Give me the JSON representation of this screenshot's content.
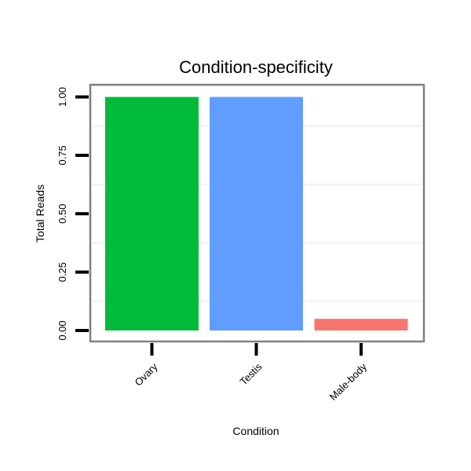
{
  "chart_data": {
    "type": "bar",
    "title": "Condition-specificity",
    "xlabel": "Condition",
    "ylabel": "Total Reads",
    "categories": [
      "Ovary",
      "Testis",
      "Male-body"
    ],
    "values": [
      1.0,
      1.0,
      0.05
    ],
    "colors": [
      "#00BA38",
      "#619CFF",
      "#F8766D"
    ],
    "ylim": [
      -0.05,
      1.05
    ],
    "yticks": [
      0,
      0.25,
      0.5,
      0.75,
      1.0
    ],
    "ytick_labels": [
      "0.00",
      "0.25",
      "0.50",
      "0.75",
      "1.00"
    ],
    "grid": true,
    "legend": "none"
  }
}
